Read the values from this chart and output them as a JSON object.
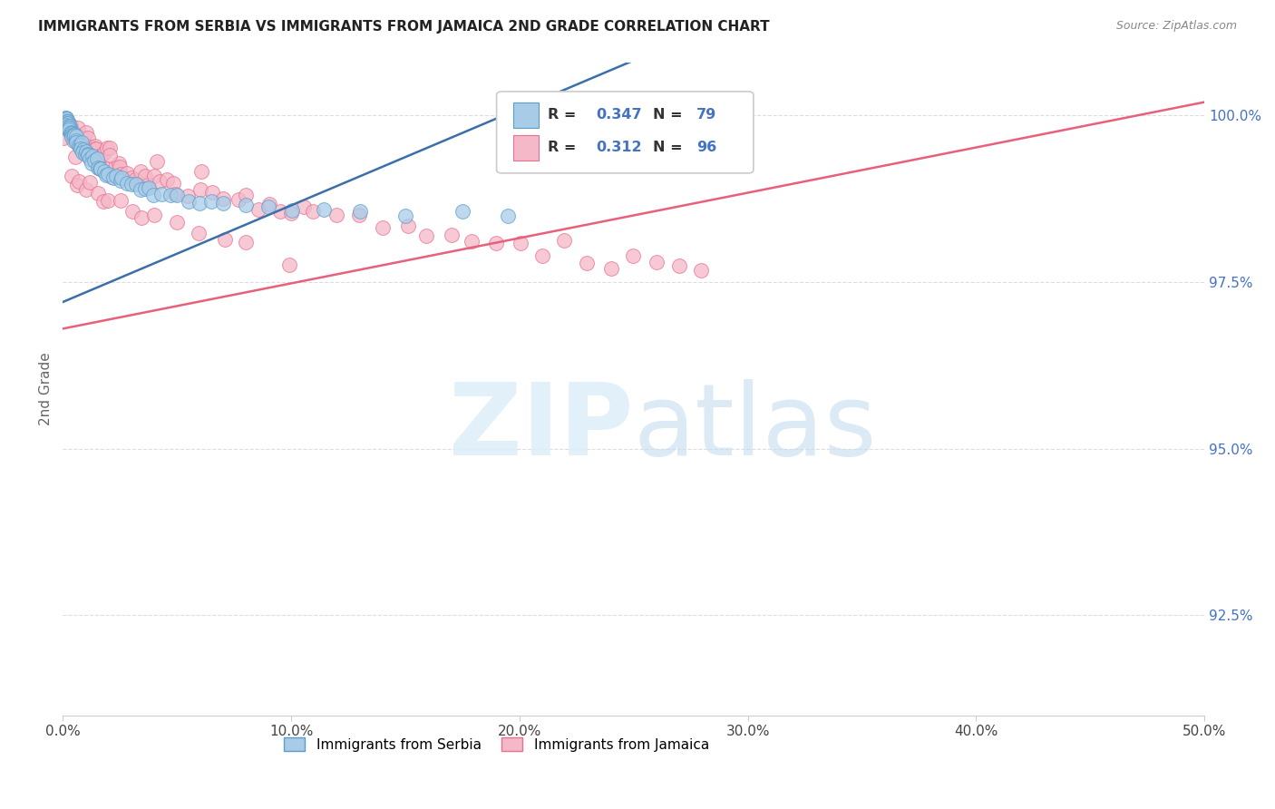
{
  "title": "IMMIGRANTS FROM SERBIA VS IMMIGRANTS FROM JAMAICA 2ND GRADE CORRELATION CHART",
  "source": "Source: ZipAtlas.com",
  "ylabel": "2nd Grade",
  "xlim": [
    0.0,
    0.5
  ],
  "ylim": [
    0.91,
    1.008
  ],
  "xtick_labels": [
    "0.0%",
    "10.0%",
    "20.0%",
    "30.0%",
    "40.0%",
    "50.0%"
  ],
  "xtick_vals": [
    0.0,
    0.1,
    0.2,
    0.3,
    0.4,
    0.5
  ],
  "ytick_labels": [
    "92.5%",
    "95.0%",
    "97.5%",
    "100.0%"
  ],
  "ytick_vals": [
    0.925,
    0.95,
    0.975,
    1.0
  ],
  "serbia_color": "#a8cce8",
  "serbia_edge": "#5b9dc9",
  "jamaica_color": "#f4b8c8",
  "jamaica_edge": "#e87090",
  "serbia_R": 0.347,
  "serbia_N": 79,
  "jamaica_R": 0.312,
  "jamaica_N": 96,
  "serbia_line_color": "#3a6faa",
  "jamaica_line_color": "#e8607a",
  "serbia_line_x0": 0.0,
  "serbia_line_y0": 0.972,
  "serbia_line_x1": 0.2,
  "serbia_line_y1": 1.001,
  "jamaica_line_x0": 0.0,
  "jamaica_line_y0": 0.968,
  "jamaica_line_x1": 0.5,
  "jamaica_line_y1": 1.002,
  "legend_label_serbia": "Immigrants from Serbia",
  "legend_label_jamaica": "Immigrants from Jamaica",
  "serbia_scatter_x": [
    0.0005,
    0.0008,
    0.001,
    0.001,
    0.001,
    0.0012,
    0.0015,
    0.0015,
    0.0018,
    0.002,
    0.002,
    0.002,
    0.002,
    0.002,
    0.0025,
    0.003,
    0.003,
    0.003,
    0.003,
    0.003,
    0.003,
    0.004,
    0.004,
    0.004,
    0.004,
    0.005,
    0.005,
    0.005,
    0.006,
    0.006,
    0.006,
    0.007,
    0.007,
    0.008,
    0.008,
    0.008,
    0.009,
    0.009,
    0.01,
    0.01,
    0.011,
    0.011,
    0.012,
    0.013,
    0.013,
    0.014,
    0.015,
    0.015,
    0.016,
    0.017,
    0.018,
    0.019,
    0.02,
    0.022,
    0.023,
    0.025,
    0.026,
    0.028,
    0.03,
    0.032,
    0.034,
    0.036,
    0.038,
    0.04,
    0.043,
    0.047,
    0.05,
    0.055,
    0.06,
    0.065,
    0.07,
    0.08,
    0.09,
    0.1,
    0.115,
    0.13,
    0.15,
    0.175,
    0.195
  ],
  "serbia_scatter_y": [
    0.9995,
    0.9995,
    0.9995,
    0.9992,
    0.999,
    0.9995,
    0.999,
    0.9992,
    0.999,
    0.9992,
    0.999,
    0.9988,
    0.9985,
    0.9988,
    0.9985,
    0.9985,
    0.9982,
    0.998,
    0.998,
    0.9978,
    0.9975,
    0.9978,
    0.9975,
    0.9972,
    0.997,
    0.9972,
    0.9968,
    0.9965,
    0.9968,
    0.9962,
    0.996,
    0.9958,
    0.9955,
    0.9955,
    0.9952,
    0.995,
    0.9948,
    0.9945,
    0.9945,
    0.9942,
    0.994,
    0.9938,
    0.9938,
    0.9935,
    0.9932,
    0.993,
    0.9928,
    0.9925,
    0.9922,
    0.992,
    0.9918,
    0.9915,
    0.9912,
    0.991,
    0.9908,
    0.9905,
    0.9902,
    0.99,
    0.9898,
    0.9895,
    0.9892,
    0.989,
    0.9888,
    0.9885,
    0.9882,
    0.988,
    0.9878,
    0.9875,
    0.9872,
    0.987,
    0.9868,
    0.9865,
    0.9862,
    0.986,
    0.9858,
    0.9855,
    0.9852,
    0.985,
    0.9848
  ],
  "jamaica_scatter_x": [
    0.001,
    0.002,
    0.002,
    0.003,
    0.003,
    0.004,
    0.004,
    0.005,
    0.005,
    0.006,
    0.006,
    0.007,
    0.007,
    0.008,
    0.008,
    0.009,
    0.01,
    0.01,
    0.011,
    0.012,
    0.012,
    0.013,
    0.014,
    0.015,
    0.015,
    0.016,
    0.017,
    0.018,
    0.019,
    0.02,
    0.021,
    0.022,
    0.023,
    0.024,
    0.025,
    0.026,
    0.028,
    0.03,
    0.032,
    0.034,
    0.036,
    0.038,
    0.04,
    0.042,
    0.045,
    0.048,
    0.05,
    0.055,
    0.06,
    0.065,
    0.07,
    0.075,
    0.08,
    0.085,
    0.09,
    0.095,
    0.1,
    0.105,
    0.11,
    0.12,
    0.13,
    0.14,
    0.15,
    0.16,
    0.17,
    0.18,
    0.19,
    0.2,
    0.21,
    0.22,
    0.23,
    0.24,
    0.25,
    0.26,
    0.27,
    0.28,
    0.003,
    0.006,
    0.008,
    0.01,
    0.012,
    0.015,
    0.018,
    0.02,
    0.025,
    0.03,
    0.035,
    0.04,
    0.05,
    0.06,
    0.07,
    0.08,
    0.1,
    0.02,
    0.04,
    0.06
  ],
  "jamaica_scatter_y": [
    0.9982,
    0.9985,
    0.9978,
    0.998,
    0.9975,
    0.9978,
    0.9972,
    0.9975,
    0.997,
    0.9972,
    0.9968,
    0.997,
    0.9965,
    0.9968,
    0.9962,
    0.9965,
    0.996,
    0.9958,
    0.9955,
    0.9952,
    0.9958,
    0.995,
    0.9948,
    0.9945,
    0.995,
    0.9942,
    0.994,
    0.9938,
    0.9935,
    0.9932,
    0.993,
    0.9928,
    0.9925,
    0.9922,
    0.992,
    0.9918,
    0.9915,
    0.9912,
    0.991,
    0.9908,
    0.9905,
    0.9902,
    0.99,
    0.9898,
    0.9895,
    0.9892,
    0.989,
    0.9885,
    0.9882,
    0.9878,
    0.9875,
    0.9872,
    0.9868,
    0.9865,
    0.9862,
    0.9858,
    0.9855,
    0.9852,
    0.9848,
    0.9842,
    0.9838,
    0.9832,
    0.9828,
    0.9822,
    0.9818,
    0.9812,
    0.9808,
    0.9802,
    0.9798,
    0.9792,
    0.9788,
    0.9782,
    0.9778,
    0.9772,
    0.9768,
    0.9762,
    0.991,
    0.9905,
    0.99,
    0.9895,
    0.989,
    0.9885,
    0.988,
    0.9875,
    0.9868,
    0.9862,
    0.9855,
    0.9848,
    0.9838,
    0.9828,
    0.9818,
    0.9808,
    0.979,
    0.9955,
    0.9938,
    0.9918
  ]
}
